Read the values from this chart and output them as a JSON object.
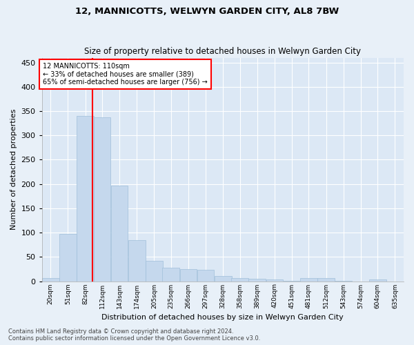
{
  "title": "12, MANNICOTTS, WELWYN GARDEN CITY, AL8 7BW",
  "subtitle": "Size of property relative to detached houses in Welwyn Garden City",
  "xlabel": "Distribution of detached houses by size in Welwyn Garden City",
  "ylabel": "Number of detached properties",
  "footnote1": "Contains HM Land Registry data © Crown copyright and database right 2024.",
  "footnote2": "Contains public sector information licensed under the Open Government Licence v3.0.",
  "bar_color": "#c5d8ed",
  "bar_edge_color": "#a0bfda",
  "background_color": "#dce8f5",
  "fig_background_color": "#e8f0f8",
  "grid_color": "#ffffff",
  "red_line_x": 110,
  "annotation_text": "12 MANNICOTTS: 110sqm\n← 33% of detached houses are smaller (389)\n65% of semi-detached houses are larger (756) →",
  "bin_edges": [
    20,
    51,
    82,
    112,
    143,
    174,
    205,
    235,
    266,
    297,
    328,
    358,
    389,
    420,
    451,
    481,
    512,
    543,
    574,
    604,
    635
  ],
  "bin_labels": [
    "20sqm",
    "51sqm",
    "82sqm",
    "112sqm",
    "143sqm",
    "174sqm",
    "205sqm",
    "235sqm",
    "266sqm",
    "297sqm",
    "328sqm",
    "358sqm",
    "389sqm",
    "420sqm",
    "451sqm",
    "481sqm",
    "512sqm",
    "543sqm",
    "574sqm",
    "604sqm",
    "635sqm"
  ],
  "counts": [
    6,
    97,
    340,
    337,
    197,
    84,
    42,
    27,
    25,
    24,
    10,
    7,
    5,
    4,
    1,
    6,
    6,
    1,
    0,
    3,
    0
  ],
  "ylim": [
    0,
    460
  ],
  "yticks": [
    0,
    50,
    100,
    150,
    200,
    250,
    300,
    350,
    400,
    450
  ]
}
